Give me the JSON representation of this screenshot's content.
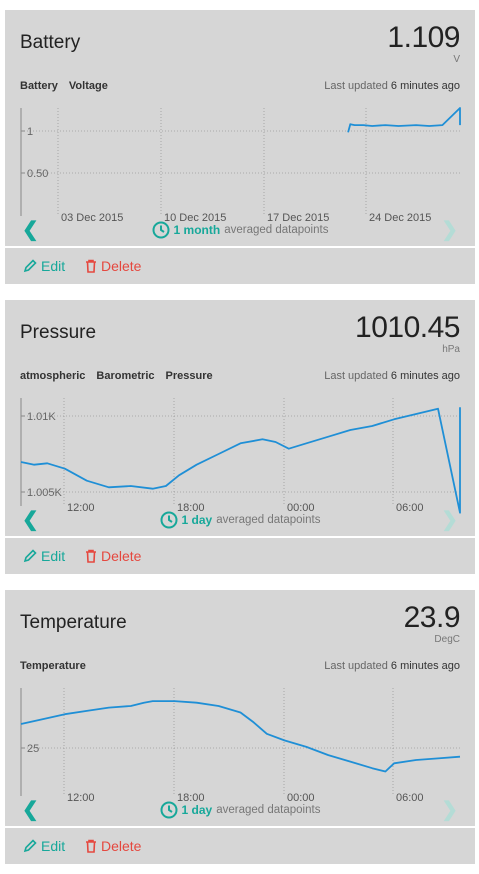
{
  "colors": {
    "accent": "#17a89a",
    "delete": "#e5483f",
    "series": "#1f8fd6",
    "card": "#d6d6d6"
  },
  "icons": {
    "edit": "pencil-icon",
    "delete": "trash-icon",
    "range": "clock-icon",
    "prev": "chevron-left-icon",
    "next": "chevron-right-icon"
  },
  "cards": [
    {
      "title": "Battery",
      "value": "1.109",
      "unit": "V",
      "tags": [
        "Battery",
        "Voltage"
      ],
      "updated_prefix": "Last updated",
      "updated_time": "6 minutes ago",
      "range_period": "1 month",
      "range_suffix": "averaged datapoints",
      "edit_label": "Edit",
      "delete_label": "Delete",
      "chart_data": {
        "type": "line",
        "x_labels": [
          "03 Dec 2015",
          "10 Dec 2015",
          "17 Dec 2015",
          "24 Dec 2015"
        ],
        "y_labels": [
          "1",
          "0.50"
        ],
        "ylim": [
          0.1,
          1.3
        ],
        "series": [
          {
            "values": [
              [
                1.0,
                1.3
              ],
              [
                0.745,
                1.03
              ],
              [
                0.75,
                1.12
              ],
              [
                0.76,
                1.11
              ],
              [
                0.78,
                1.11
              ],
              [
                0.8,
                1.1
              ],
              [
                0.83,
                1.11
              ],
              [
                0.86,
                1.1
              ],
              [
                0.9,
                1.11
              ],
              [
                0.93,
                1.1
              ],
              [
                0.96,
                1.11
              ],
              [
                1.0,
                1.11
              ]
            ]
          }
        ]
      }
    },
    {
      "title": "Pressure",
      "value": "1010.45",
      "unit": "hPa",
      "tags": [
        "atmospheric",
        "Barometric",
        "Pressure"
      ],
      "updated_prefix": "Last updated",
      "updated_time": "6 minutes ago",
      "range_period": "1 day",
      "range_suffix": "averaged datapoints",
      "edit_label": "Edit",
      "delete_label": "Delete",
      "chart_data": {
        "type": "line",
        "x_labels": [
          "12:00",
          "18:00",
          "00:00",
          "06:00"
        ],
        "y_labels": [
          "1.01K",
          "1.005K"
        ],
        "ylim": [
          1003.5,
          1011.6
        ],
        "series": [
          {
            "values": [
              [
                1.0,
                1003.0
              ],
              [
                0.0,
                1006.8
              ],
              [
                0.03,
                1006.6
              ],
              [
                0.06,
                1006.7
              ],
              [
                0.1,
                1006.3
              ],
              [
                0.15,
                1005.4
              ],
              [
                0.2,
                1004.9
              ],
              [
                0.25,
                1005.0
              ],
              [
                0.3,
                1004.8
              ],
              [
                0.33,
                1005.0
              ],
              [
                0.36,
                1005.8
              ],
              [
                0.4,
                1006.6
              ],
              [
                0.45,
                1007.4
              ],
              [
                0.5,
                1008.2
              ],
              [
                0.55,
                1008.5
              ],
              [
                0.58,
                1008.3
              ],
              [
                0.61,
                1007.8
              ],
              [
                0.65,
                1008.2
              ],
              [
                0.7,
                1008.7
              ],
              [
                0.75,
                1009.2
              ],
              [
                0.8,
                1009.5
              ],
              [
                0.85,
                1010.0
              ],
              [
                0.9,
                1010.4
              ],
              [
                0.95,
                1010.8
              ],
              [
                1.0,
                1010.9
              ]
            ]
          }
        ]
      }
    },
    {
      "title": "Temperature",
      "value": "23.9",
      "unit": "DegC",
      "tags": [
        "Temperature"
      ],
      "updated_prefix": "Last updated",
      "updated_time": "6 minutes ago",
      "range_period": "1 day",
      "range_suffix": "averaged datapoints",
      "edit_label": "Edit",
      "delete_label": "Delete",
      "chart_data": {
        "type": "line",
        "x_labels": [
          "12:00",
          "18:00",
          "00:00",
          "06:00"
        ],
        "y_labels": [
          "25"
        ],
        "ylim": [
          21.8,
          28.4
        ],
        "series": [
          {
            "values": [
              [
                0.0,
                26.2
              ],
              [
                0.05,
                26.5
              ],
              [
                0.1,
                26.8
              ],
              [
                0.15,
                27.0
              ],
              [
                0.2,
                27.2
              ],
              [
                0.25,
                27.3
              ],
              [
                0.28,
                27.5
              ],
              [
                0.3,
                27.6
              ],
              [
                0.35,
                27.6
              ],
              [
                0.4,
                27.5
              ],
              [
                0.45,
                27.3
              ],
              [
                0.5,
                26.9
              ],
              [
                0.53,
                26.3
              ],
              [
                0.56,
                25.6
              ],
              [
                0.6,
                25.2
              ],
              [
                0.65,
                24.8
              ],
              [
                0.7,
                24.3
              ],
              [
                0.75,
                23.9
              ],
              [
                0.8,
                23.5
              ],
              [
                0.83,
                23.3
              ],
              [
                0.85,
                23.8
              ],
              [
                0.9,
                24.0
              ],
              [
                0.95,
                24.1
              ],
              [
                1.0,
                24.2
              ]
            ]
          }
        ]
      }
    }
  ]
}
